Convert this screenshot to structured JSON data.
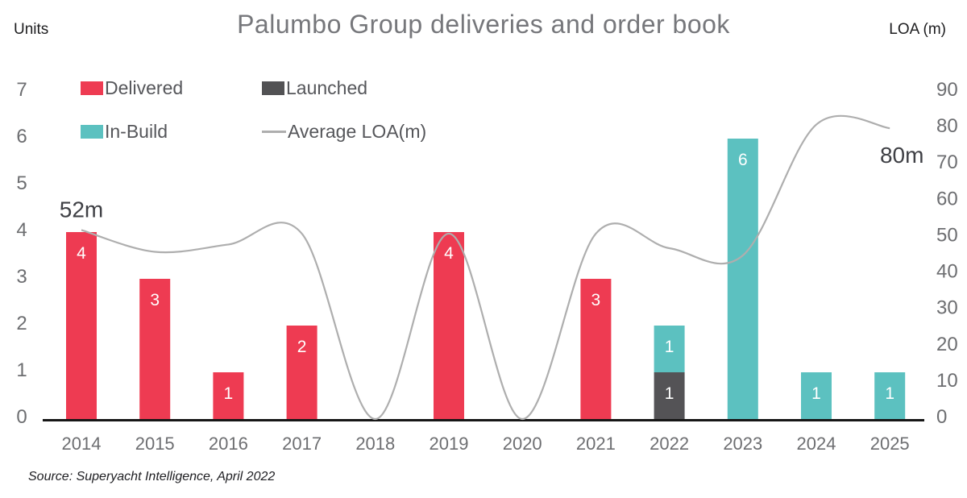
{
  "title": "Palumbo Group deliveries and order book",
  "axes": {
    "left_label": "Units",
    "right_label": "LOA (m)"
  },
  "legend": {
    "items": [
      {
        "label": "Delivered",
        "marker": "box",
        "color": "#ee3b52"
      },
      {
        "label": "Launched",
        "marker": "box",
        "color": "#525254"
      },
      {
        "label": "In-Build",
        "marker": "box",
        "color": "#5cc1c0"
      },
      {
        "label": "Average LOA(m)",
        "marker": "line",
        "color": "#aeaeae"
      }
    ]
  },
  "source": "Source: Superyacht Intelligence, April 2022",
  "chart_data": {
    "type": "bar",
    "subtype": "stacked-bar-with-line-overlay-dual-axis",
    "title": "Palumbo Group deliveries and order book",
    "categories": [
      "2014",
      "2015",
      "2016",
      "2017",
      "2018",
      "2019",
      "2020",
      "2021",
      "2022",
      "2023",
      "2024",
      "2025"
    ],
    "series": [
      {
        "name": "Delivered",
        "type": "bar",
        "axis": "left",
        "color": "#ee3b52",
        "values": [
          4,
          3,
          1,
          2,
          0,
          4,
          0,
          3,
          0,
          0,
          0,
          0
        ]
      },
      {
        "name": "Launched",
        "type": "bar",
        "axis": "left",
        "color": "#545356",
        "values": [
          0,
          0,
          0,
          0,
          0,
          0,
          0,
          0,
          1,
          0,
          0,
          0
        ]
      },
      {
        "name": "In-Build",
        "type": "bar",
        "axis": "left",
        "color": "#5cc1c0",
        "values": [
          0,
          0,
          0,
          0,
          0,
          0,
          0,
          0,
          1,
          6,
          1,
          1
        ]
      },
      {
        "name": "Average LOA(m)",
        "type": "line",
        "axis": "right",
        "color": "#aeaeae",
        "values": [
          52,
          46,
          48,
          51,
          0,
          51,
          0,
          51,
          47,
          45,
          81,
          80
        ]
      }
    ],
    "left_axis": {
      "label": "Units",
      "min": 0,
      "max": 7,
      "step": 1
    },
    "right_axis": {
      "label": "LOA (m)",
      "min": 0,
      "max": 90,
      "step": 10
    },
    "annotations": [
      {
        "text": "52m",
        "category": "2014",
        "value": 52
      },
      {
        "text": "80m",
        "category": "2025",
        "value": 80
      }
    ],
    "grid": false,
    "legend_position": "top-left",
    "bar_value_labels": true,
    "xlabel": "",
    "ylabel_left": "Units",
    "ylabel_right": "LOA (m)"
  }
}
